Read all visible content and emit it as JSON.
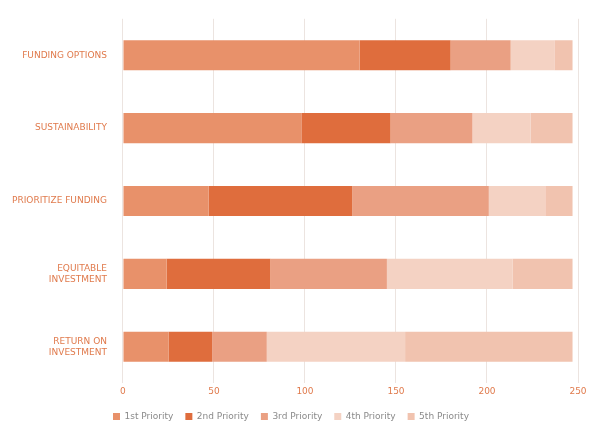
{
  "chart_data": {
    "type": "bar",
    "orientation": "horizontal",
    "stacked": true,
    "grid": true,
    "legend": "bottom",
    "categories": [
      "FUNDING OPTIONS",
      "SUSTAINABILITY",
      "PRIORITIZE FUNDING",
      "EQUITABLE INVESTMENT",
      "RETURN ON INVESTMENT"
    ],
    "xlim": [
      0,
      250
    ],
    "xticks": [
      0,
      50,
      100,
      150,
      200,
      250
    ],
    "series": [
      {
        "name": "1st Priority",
        "color": "#e8916a",
        "values": [
          130,
          98,
          47,
          24,
          25
        ]
      },
      {
        "name": "2nd Priority",
        "color": "#df6d3d",
        "values": [
          50,
          49,
          79,
          57,
          24
        ]
      },
      {
        "name": "3rd Priority",
        "color": "#eaa083",
        "values": [
          33,
          45,
          75,
          64,
          30
        ]
      },
      {
        "name": "4th Priority",
        "color": "#f4d2c3",
        "values": [
          24,
          32,
          31,
          69,
          76
        ]
      },
      {
        "name": "5th Priority",
        "color": "#f1c3af",
        "values": [
          10,
          23,
          15,
          33,
          92
        ]
      }
    ]
  }
}
